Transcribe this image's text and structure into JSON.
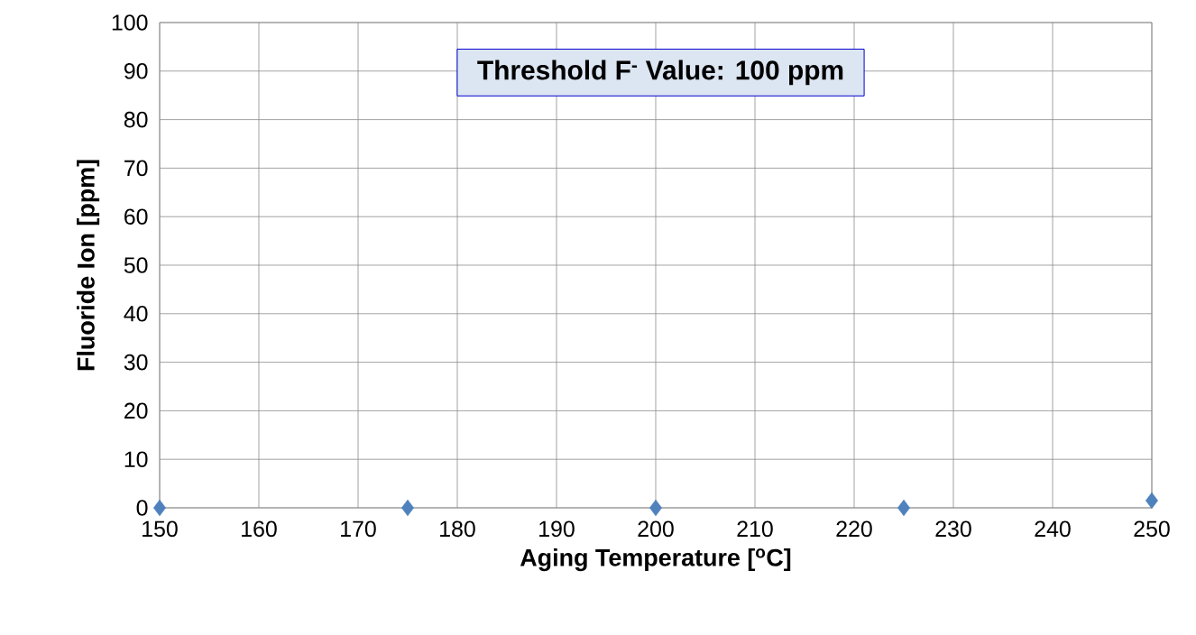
{
  "chart_data": {
    "type": "scatter",
    "xlabel": "Aging Temperature [$^{o}$C]",
    "ylabel": "Fluoride Ion [ppm]",
    "annotations": [
      "Threshold F$^{-}$ Value: 100 ppm"
    ],
    "x": [
      150,
      175,
      200,
      225,
      250
    ],
    "series": [
      {
        "color": "#4f81bd",
        "values": [
          0,
          0,
          0,
          0,
          1.5
        ]
      }
    ],
    "xlim": [
      150,
      250
    ],
    "xticks": [
      150,
      160,
      170,
      180,
      190,
      200,
      210,
      220,
      230,
      240,
      250
    ],
    "ylim": [
      0,
      100
    ],
    "yticks": [
      0,
      10,
      20,
      30,
      40,
      50,
      60,
      70,
      80,
      90,
      100
    ],
    "grid": true,
    "marker": "diamond"
  }
}
